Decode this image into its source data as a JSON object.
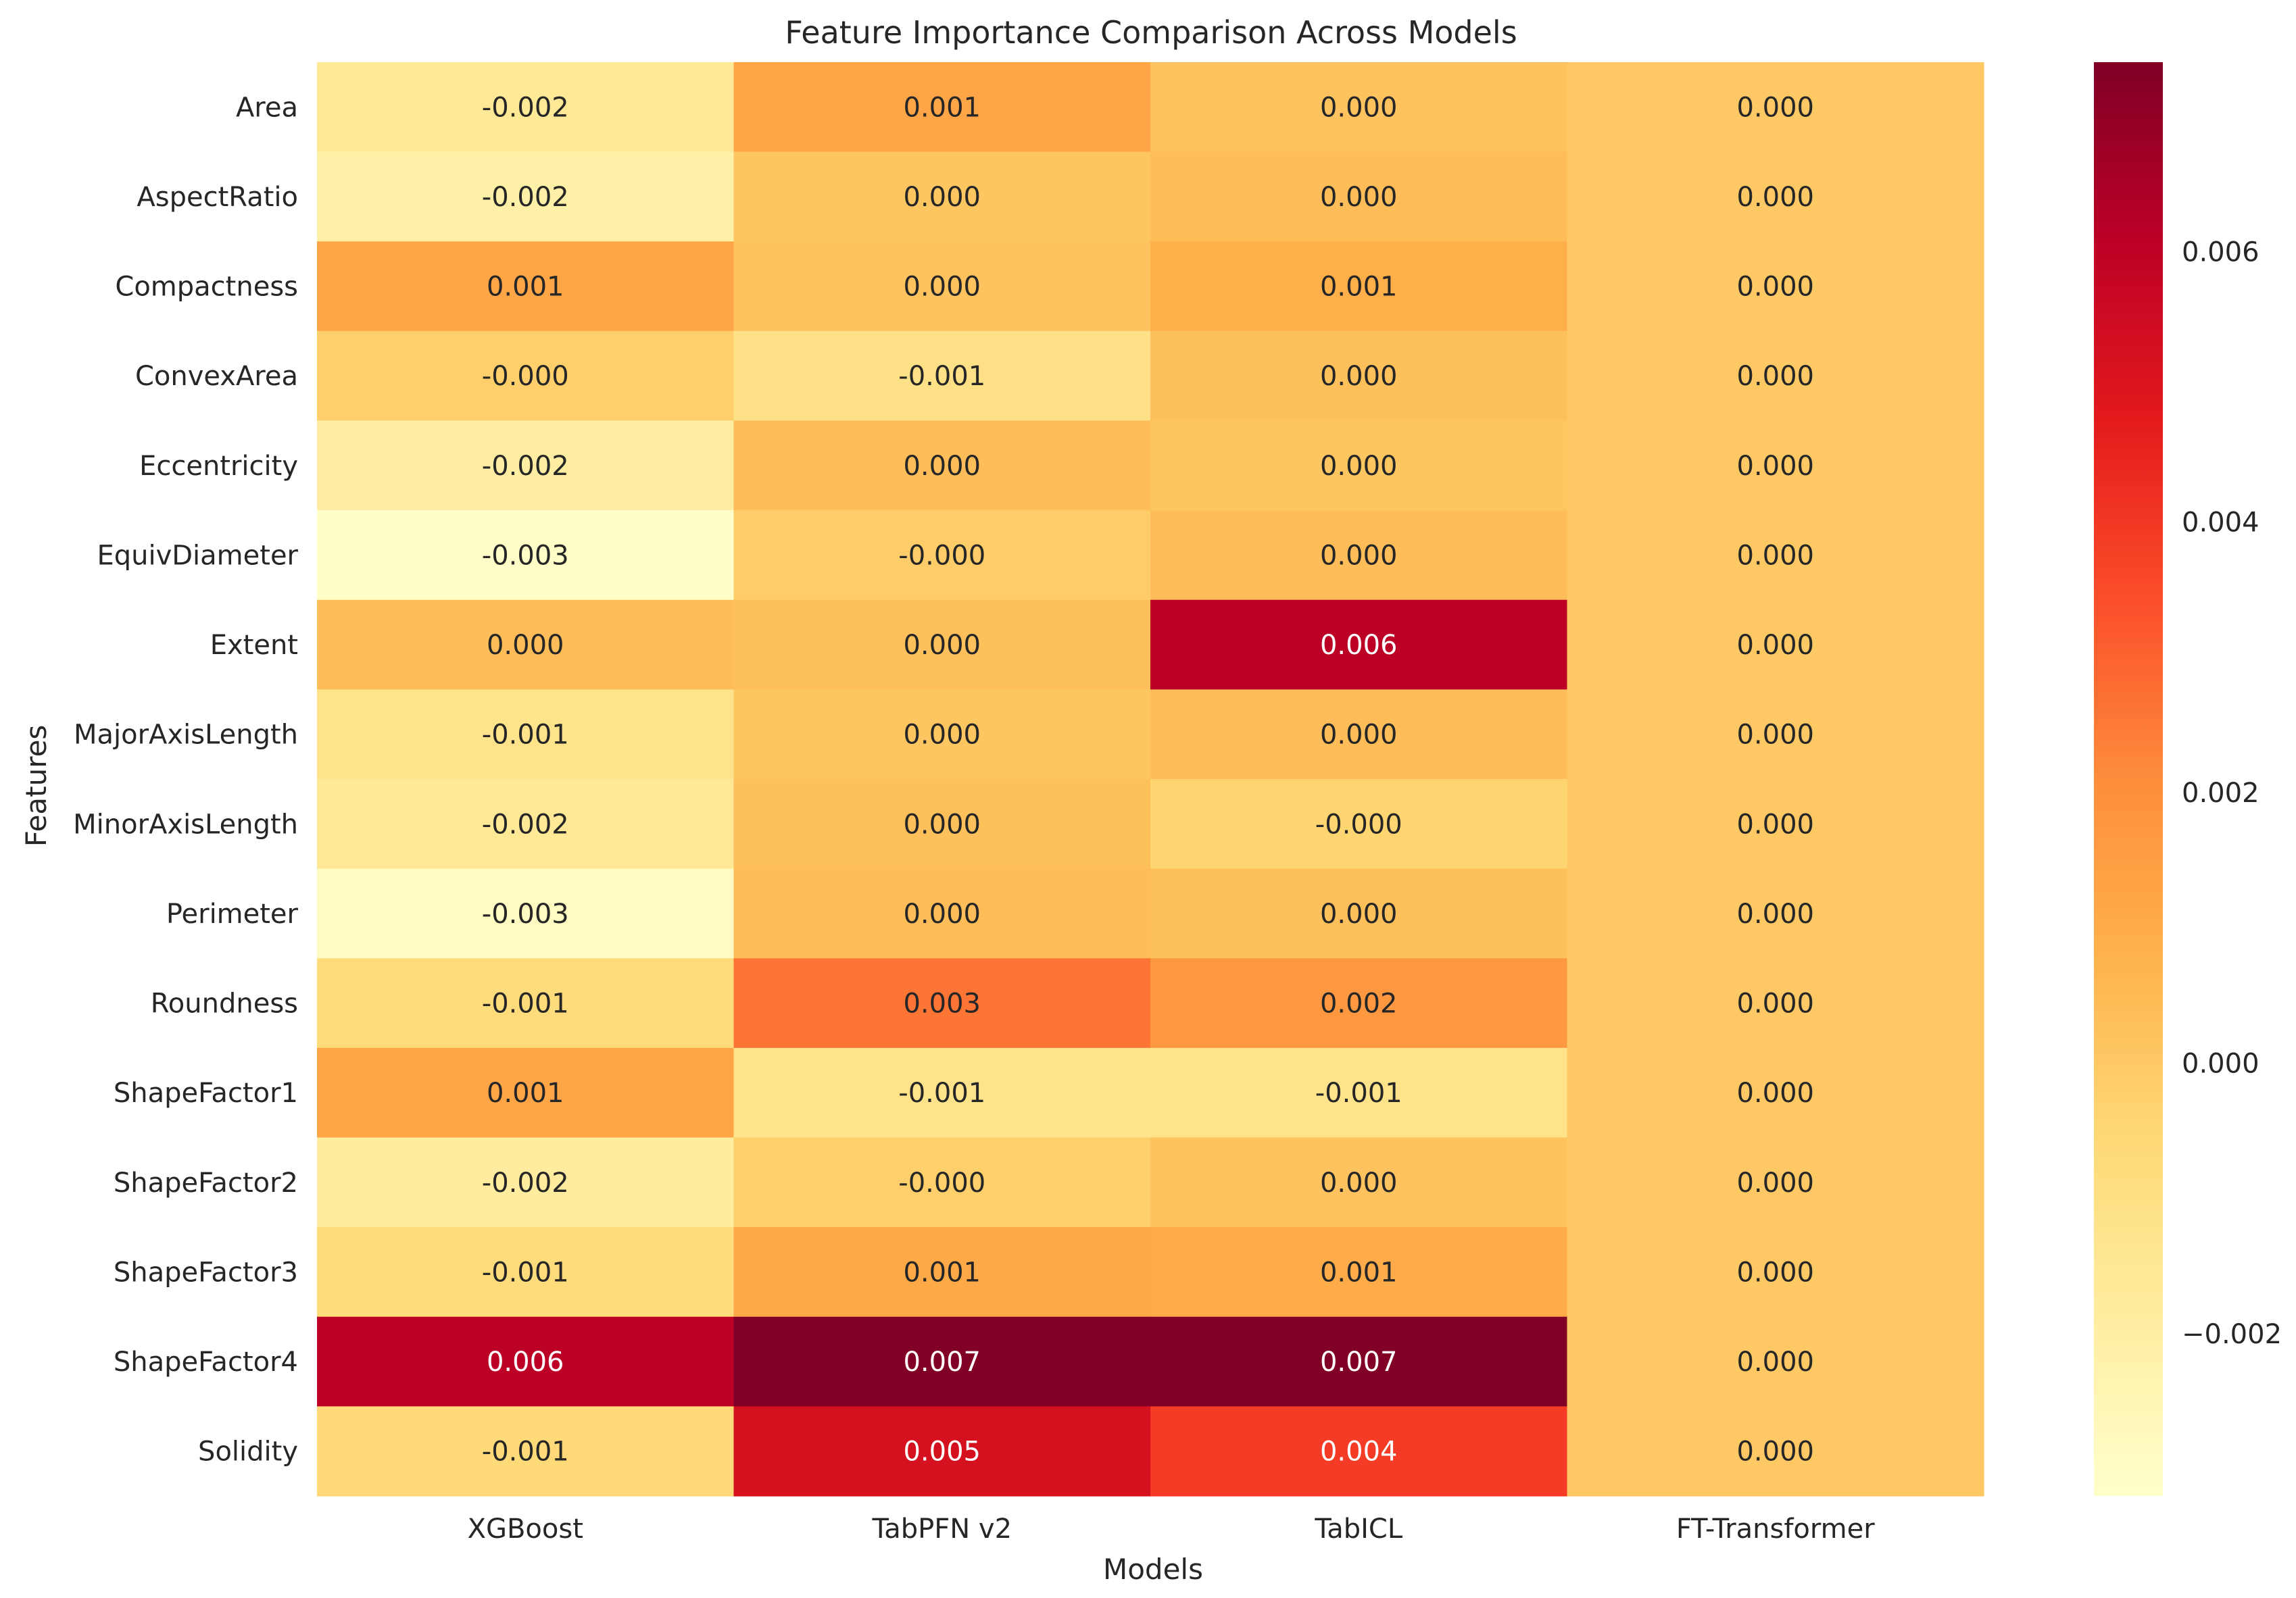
{
  "chart_data": {
    "type": "heatmap",
    "title": "Feature Importance Comparison Across Models",
    "xlabel": "Models",
    "ylabel": "Features",
    "x_categories": [
      "XGBoost",
      "TabPFN v2",
      "TabICL",
      "FT-Transformer"
    ],
    "y_categories": [
      "Area",
      "AspectRatio",
      "Compactness",
      "ConvexArea",
      "Eccentricity",
      "EquivDiameter",
      "Extent",
      "MajorAxisLength",
      "MinorAxisLength",
      "Perimeter",
      "Roundness",
      "ShapeFactor1",
      "ShapeFactor2",
      "ShapeFactor3",
      "ShapeFactor4",
      "Solidity"
    ],
    "values": [
      [
        -0.0016,
        0.0012,
        0.0002,
        0.0
      ],
      [
        -0.0021,
        0.0001,
        0.0004,
        0.0
      ],
      [
        0.0012,
        0.0002,
        0.0009,
        0.0
      ],
      [
        -0.0002,
        -0.0011,
        0.0003,
        0.0
      ],
      [
        -0.0019,
        0.0004,
        0.0001,
        0.0
      ],
      [
        -0.0031,
        -0.0001,
        0.0004,
        0.0
      ],
      [
        0.0004,
        0.0003,
        0.0061,
        0.0
      ],
      [
        -0.0012,
        0.0001,
        0.0004,
        0.0
      ],
      [
        -0.0016,
        0.0003,
        -0.0004,
        0.0
      ],
      [
        -0.0029,
        0.0004,
        0.0003,
        0.0
      ],
      [
        -0.0007,
        0.0026,
        0.0017,
        0.0
      ],
      [
        0.0012,
        -0.0012,
        -0.0012,
        0.0
      ],
      [
        -0.0018,
        -0.0002,
        0.0002,
        0.0
      ],
      [
        -0.0007,
        0.0011,
        0.001,
        0.0
      ],
      [
        0.0061,
        0.0074,
        0.0074,
        0.0
      ],
      [
        -0.0006,
        0.0052,
        0.0039,
        0.0
      ]
    ],
    "cell_labels": [
      [
        "-0.002",
        "0.001",
        "0.000",
        "0.000"
      ],
      [
        "-0.002",
        "0.000",
        "0.000",
        "0.000"
      ],
      [
        "0.001",
        "0.000",
        "0.001",
        "0.000"
      ],
      [
        "-0.000",
        "-0.001",
        "0.000",
        "0.000"
      ],
      [
        "-0.002",
        "0.000",
        "0.000",
        "0.000"
      ],
      [
        "-0.003",
        "-0.000",
        "0.000",
        "0.000"
      ],
      [
        "0.000",
        "0.000",
        "0.006",
        "0.000"
      ],
      [
        "-0.001",
        "0.000",
        "0.000",
        "0.000"
      ],
      [
        "-0.002",
        "0.000",
        "-0.000",
        "0.000"
      ],
      [
        "-0.003",
        "0.000",
        "0.000",
        "0.000"
      ],
      [
        "-0.001",
        "0.003",
        "0.002",
        "0.000"
      ],
      [
        "0.001",
        "-0.001",
        "-0.001",
        "0.000"
      ],
      [
        "-0.002",
        "-0.000",
        "0.000",
        "0.000"
      ],
      [
        "-0.001",
        "0.001",
        "0.001",
        "0.000"
      ],
      [
        "0.006",
        "0.007",
        "0.007",
        "0.000"
      ],
      [
        "-0.001",
        "0.005",
        "0.004",
        "0.000"
      ]
    ],
    "colormap": "YlOrRd",
    "vmin": -0.0032,
    "vmax": 0.0074,
    "colorbar_ticks": [
      -0.002,
      0.0,
      0.002,
      0.004,
      0.006
    ],
    "colorbar_tick_labels": [
      "−0.002",
      "0.000",
      "0.002",
      "0.004",
      "0.006"
    ],
    "grid": false
  }
}
